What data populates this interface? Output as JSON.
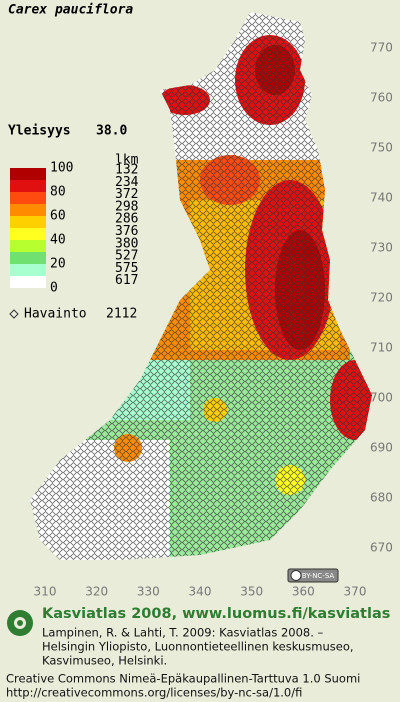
{
  "title": "Carex pauciflora",
  "frequency": {
    "label": "Yleisyys",
    "value": "38.0"
  },
  "legend": {
    "header": "lkm",
    "scale_labels": [
      "100",
      "80",
      "60",
      "40",
      "20",
      "0"
    ],
    "counts": [
      "132",
      "234",
      "372",
      "298",
      "286",
      "376",
      "380",
      "527",
      "575",
      "617"
    ],
    "colors": [
      "#b00000",
      "#e01010",
      "#ff4a10",
      "#ff8c00",
      "#ffd000",
      "#ffff20",
      "#b8ff30",
      "#70e070",
      "#a8ffd0",
      "#ffffff"
    ]
  },
  "observations": {
    "label": "Havainto",
    "count": "2112"
  },
  "y_labels": [
    770,
    760,
    750,
    740,
    730,
    720,
    710,
    700,
    690,
    680,
    670
  ],
  "x_labels": [
    310,
    320,
    330,
    340,
    350,
    360,
    370
  ],
  "license_badge": "BY-NC-SA",
  "footer": {
    "title": "Kasviatlas 2008, www.luomus.fi/kasviatlas",
    "citation": [
      "Lampinen, R. & Lahti, T. 2009: Kasviatlas 2008. –",
      "Helsingin Yliopisto, Luonnontieteellinen keskusmuseo,",
      "Kasvimuseo, Helsinki."
    ],
    "license": [
      "Creative Commons Nimeä-Epäkaupallinen-Tarttuva 1.0 Suomi",
      "http://creativecommons.org/licenses/by-nc-sa/1.0/fi"
    ]
  }
}
